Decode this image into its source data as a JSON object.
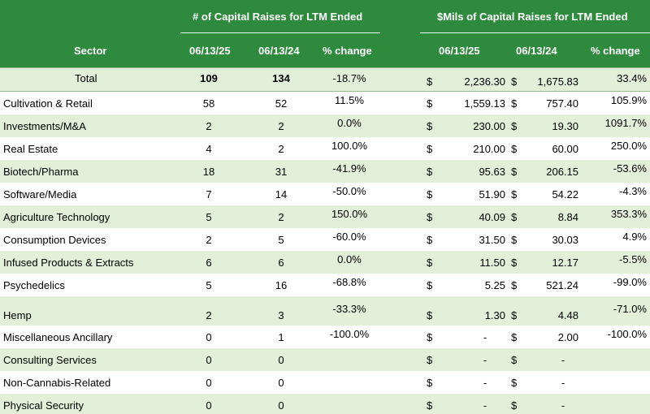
{
  "header": {
    "count_group_title": "# of Capital Raises for LTM  Ended",
    "amount_group_title": "$Mils of Capital Raises for LTM Ended",
    "sector_label": "Sector",
    "date_current": "06/13/25",
    "date_prior": "06/13/24",
    "change_label": "% change"
  },
  "colors": {
    "header_green": "#2e8b3e",
    "band_green": "#e2efd9",
    "total_green": "#e2efd9"
  },
  "currency_symbol": "$",
  "total": {
    "label": "Total",
    "count_current": "109",
    "count_prior": "134",
    "count_change": "-18.7%",
    "amt_current": "2,236.30",
    "amt_prior": "1,675.83",
    "amt_change": "33.4%"
  },
  "rows": [
    {
      "sector": "Cultivation & Retail",
      "count_current": "58",
      "count_prior": "52",
      "count_change": "11.5%",
      "amt_current": "1,559.13",
      "amt_prior": "757.40",
      "amt_change": "105.9%"
    },
    {
      "sector": "Investments/M&A",
      "count_current": "2",
      "count_prior": "2",
      "count_change": "0.0%",
      "amt_current": "230.00",
      "amt_prior": "19.30",
      "amt_change": "1091.7%"
    },
    {
      "sector": "Real Estate",
      "count_current": "4",
      "count_prior": "2",
      "count_change": "100.0%",
      "amt_current": "210.00",
      "amt_prior": "60.00",
      "amt_change": "250.0%"
    },
    {
      "sector": "Biotech/Pharma",
      "count_current": "18",
      "count_prior": "31",
      "count_change": "-41.9%",
      "amt_current": "95.63",
      "amt_prior": "206.15",
      "amt_change": "-53.6%"
    },
    {
      "sector": "Software/Media",
      "count_current": "7",
      "count_prior": "14",
      "count_change": "-50.0%",
      "amt_current": "51.90",
      "amt_prior": "54.22",
      "amt_change": "-4.3%"
    },
    {
      "sector": "Agriculture Technology",
      "count_current": "5",
      "count_prior": "2",
      "count_change": "150.0%",
      "amt_current": "40.09",
      "amt_prior": "8.84",
      "amt_change": "353.3%"
    },
    {
      "sector": "Consumption Devices",
      "count_current": "2",
      "count_prior": "5",
      "count_change": "-60.0%",
      "amt_current": "31.50",
      "amt_prior": "30.03",
      "amt_change": "4.9%"
    },
    {
      "sector": "Infused Products & Extracts",
      "count_current": "6",
      "count_prior": "6",
      "count_change": "0.0%",
      "amt_current": "11.50",
      "amt_prior": "12.17",
      "amt_change": "-5.5%"
    },
    {
      "sector": "Psychedelics",
      "count_current": "5",
      "count_prior": "16",
      "count_change": "-68.8%",
      "amt_current": "5.25",
      "amt_prior": "521.24",
      "amt_change": "-99.0%"
    },
    {
      "sector": "Hemp",
      "count_current": "2",
      "count_prior": "3",
      "count_change": "-33.3%",
      "amt_current": "1.30",
      "amt_prior": "4.48",
      "amt_change": "-71.0%"
    },
    {
      "sector": "Miscellaneous Ancillary",
      "count_current": "0",
      "count_prior": "1",
      "count_change": "-100.0%",
      "amt_current": "-",
      "amt_prior": "2.00",
      "amt_change": "-100.0%"
    },
    {
      "sector": "Consulting Services",
      "count_current": "0",
      "count_prior": "0",
      "count_change": "",
      "amt_current": "-",
      "amt_prior": "-",
      "amt_change": ""
    },
    {
      "sector": "Non-Cannabis-Related",
      "count_current": "0",
      "count_prior": "0",
      "count_change": "",
      "amt_current": "-",
      "amt_prior": "-",
      "amt_change": ""
    },
    {
      "sector": "Physical Security",
      "count_current": "0",
      "count_prior": "0",
      "count_change": "",
      "amt_current": "-",
      "amt_prior": "-",
      "amt_change": ""
    }
  ]
}
